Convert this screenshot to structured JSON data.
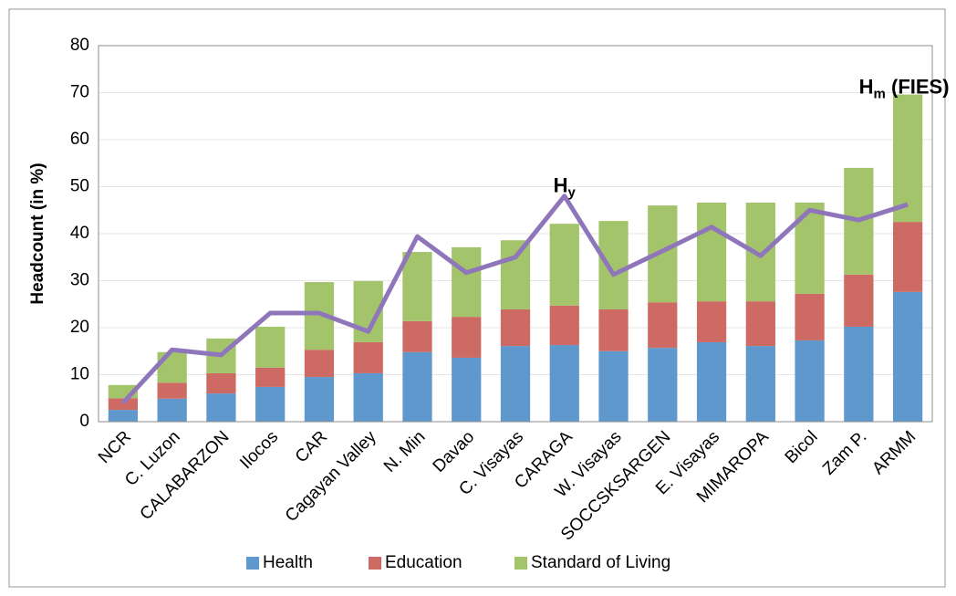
{
  "chart_data": {
    "type": "bar",
    "stacked": true,
    "y_axis_label": "Headcount (in %)",
    "categories": [
      "NCR",
      "C. Luzon",
      "CALABARZON",
      "Ilocos",
      "CAR",
      "Cagayan Valley",
      "N. Min",
      "Davao",
      "C. Visayas",
      "CARAGA",
      "W. Visayas",
      "SOCCSKSARGEN",
      "E. Visayas",
      "MIMAROPA",
      "Bicol",
      "Zam P.",
      "ARMM"
    ],
    "series": [
      {
        "name": "Health",
        "color": "#5f98cd",
        "values": [
          2.5,
          4.9,
          6.0,
          7.4,
          9.5,
          10.3,
          14.8,
          13.6,
          16.1,
          16.3,
          15.0,
          15.7,
          16.9,
          16.1,
          17.3,
          20.2,
          27.6
        ]
      },
      {
        "name": "Education",
        "color": "#cd6a63",
        "values": [
          2.5,
          3.4,
          4.3,
          4.1,
          5.8,
          6.6,
          6.6,
          8.7,
          7.8,
          8.4,
          8.9,
          9.7,
          8.7,
          9.5,
          9.9,
          11.1,
          14.9
        ]
      },
      {
        "name": "Standard of Living",
        "color": "#a3c46b",
        "values": [
          2.8,
          6.5,
          7.4,
          8.7,
          14.4,
          13.0,
          14.7,
          14.8,
          14.7,
          17.4,
          18.8,
          20.6,
          21.0,
          21.0,
          19.4,
          22.7,
          27.1
        ]
      }
    ],
    "line": {
      "color": "#8f76bb",
      "values": [
        4.0,
        15.3,
        14.2,
        23.1,
        23.1,
        19.2,
        39.4,
        31.7,
        35.0,
        48.0,
        31.3,
        36.3,
        41.4,
        35.3,
        45.0,
        42.9,
        46.2
      ]
    },
    "annotations": [
      {
        "base": "H",
        "sub": "y",
        "category": 9,
        "value": 50
      },
      {
        "base": "H",
        "sub": "m",
        "suffix": " (FIES)",
        "category": 16,
        "value": 71
      }
    ],
    "ylim": [
      0,
      80
    ],
    "yticks": [
      0,
      10,
      20,
      30,
      40,
      50,
      60,
      70,
      80
    ],
    "grid": true,
    "legend": "bottom"
  }
}
